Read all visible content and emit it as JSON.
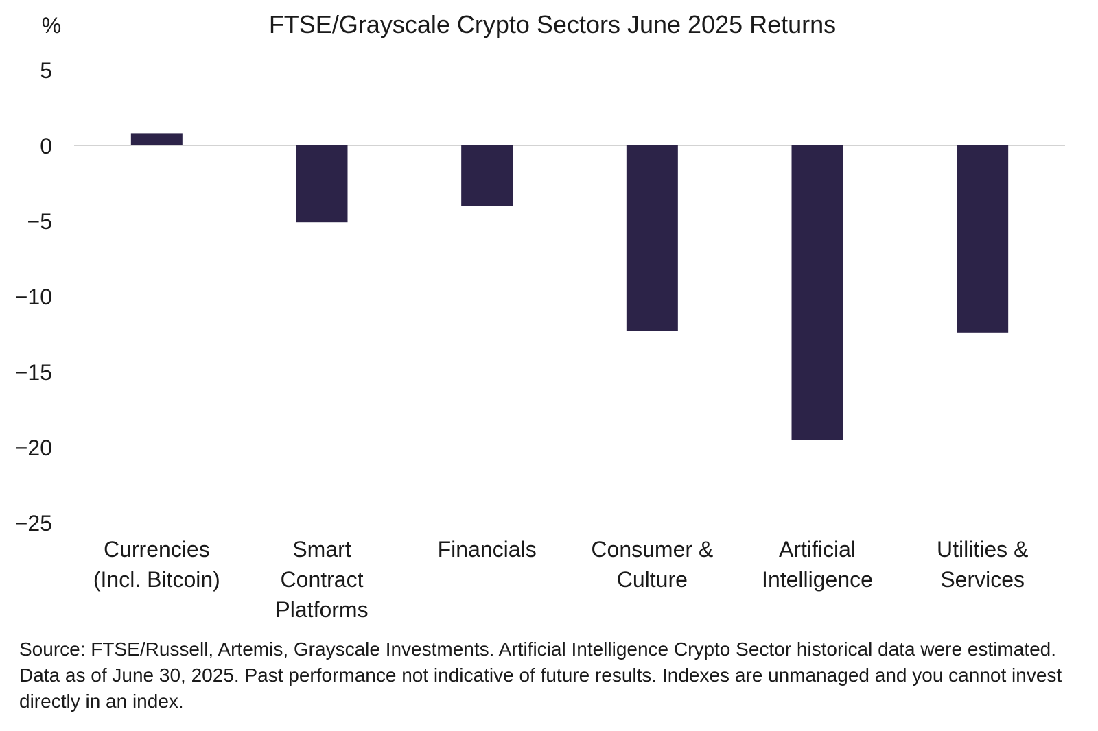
{
  "chart_data": {
    "type": "bar",
    "title": "FTSE/Grayscale Crypto Sectors June 2025 Returns",
    "ylabel": "%",
    "xlabel": "",
    "ylim": [
      -25,
      5
    ],
    "yticks": [
      5,
      0,
      -5,
      -10,
      -15,
      -20,
      -25
    ],
    "ytick_labels": [
      "5",
      "0",
      "−5",
      "−10",
      "−15",
      "−20",
      "−25"
    ],
    "categories": [
      [
        "Currencies",
        "(Incl. Bitcoin)"
      ],
      [
        "Smart",
        "Contract",
        "Platforms"
      ],
      [
        "Financials"
      ],
      [
        "Consumer &",
        "Culture"
      ],
      [
        "Artificial",
        "Intelligence"
      ],
      [
        "Utilities &",
        "Services"
      ]
    ],
    "values": [
      0.8,
      -5.1,
      -4.0,
      -12.3,
      -19.5,
      -12.4
    ],
    "grid": false,
    "bar_color": "#2c2348",
    "zero_line_color": "#d3d3d3"
  },
  "footnote": "Source: FTSE/Russell, Artemis, Grayscale Investments. Artificial Intelligence Crypto Sector historical data were estimated. Data as of June 30, 2025. Past performance not indicative of future results. Indexes are unmanaged and you cannot invest directly in an index."
}
